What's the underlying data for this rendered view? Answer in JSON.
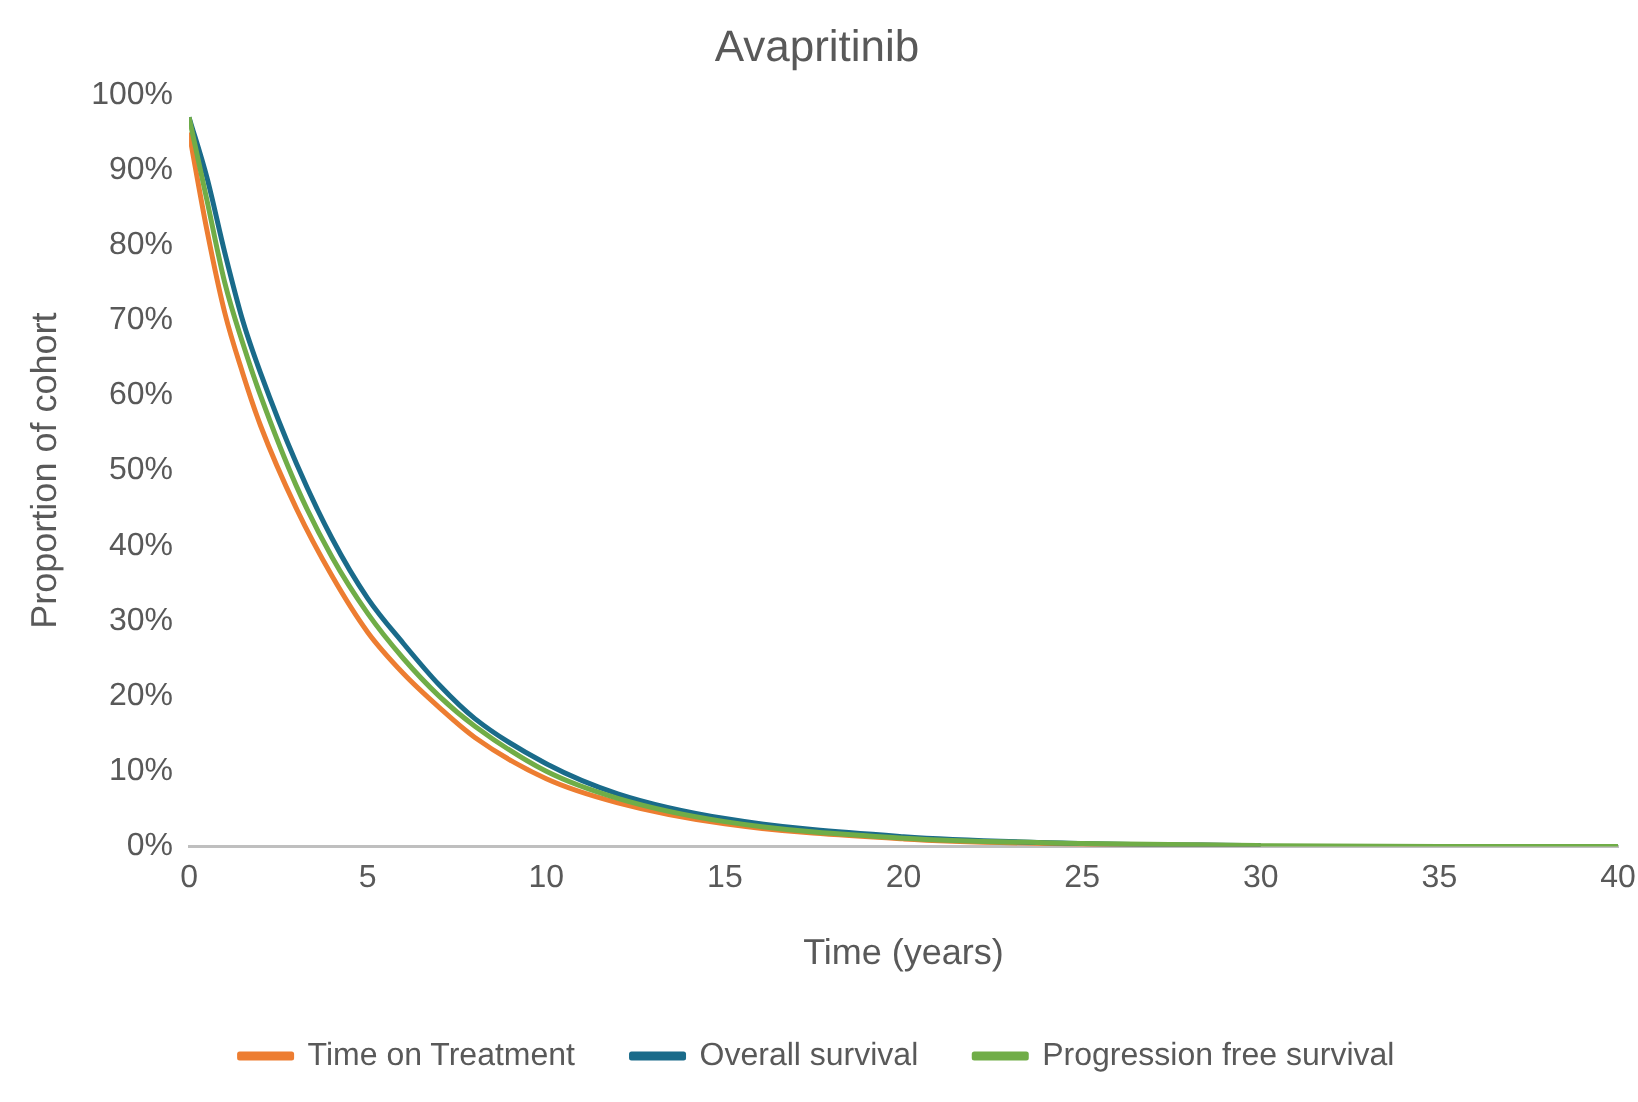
{
  "chart_data": {
    "type": "line",
    "title": "Avapritinib",
    "xlabel": "Time (years)",
    "ylabel": "Proportion of cohort",
    "x": [
      0,
      0.5,
      1,
      1.5,
      2,
      3,
      4,
      5,
      6,
      7,
      8,
      10,
      12,
      15,
      20,
      25,
      30,
      35,
      40
    ],
    "series": [
      {
        "name": "Time on Treatment",
        "color": "#ed7d31",
        "values": [
          95,
          82,
          71,
          63,
          56,
          45,
          36,
          28.5,
          23,
          18.5,
          14.5,
          9,
          5.8,
          3,
          1,
          0.3,
          0.1,
          null,
          null
        ]
      },
      {
        "name": "Overall survival",
        "color": "#1a6b8a",
        "values": [
          97,
          89,
          79,
          70,
          63,
          51,
          41,
          33,
          27,
          21.5,
          17,
          11,
          7,
          3.7,
          1.3,
          0.4,
          0.1,
          null,
          null
        ]
      },
      {
        "name": "Progression free survival",
        "color": "#70ad47",
        "values": [
          97,
          86,
          75,
          67,
          60,
          48,
          38.5,
          31,
          25,
          20,
          16,
          10,
          6.4,
          3.3,
          1.1,
          0.4,
          0.1,
          0,
          0
        ]
      }
    ],
    "xlim": [
      0,
      40
    ],
    "xticks": [
      0,
      5,
      10,
      15,
      20,
      25,
      30,
      35,
      40
    ],
    "ylim": [
      0,
      100
    ],
    "yticks": [
      {
        "value": 0,
        "label": "0%"
      },
      {
        "value": 10,
        "label": "10%"
      },
      {
        "value": 20,
        "label": "20%"
      },
      {
        "value": 30,
        "label": "30%"
      },
      {
        "value": 40,
        "label": "40%"
      },
      {
        "value": 50,
        "label": "50%"
      },
      {
        "value": 60,
        "label": "60%"
      },
      {
        "value": 70,
        "label": "70%"
      },
      {
        "value": 80,
        "label": "80%"
      },
      {
        "value": 90,
        "label": "90%"
      },
      {
        "value": 100,
        "label": "100%"
      }
    ],
    "grid": false,
    "legend": "bottom",
    "marker": "none",
    "line_style": "solid"
  }
}
